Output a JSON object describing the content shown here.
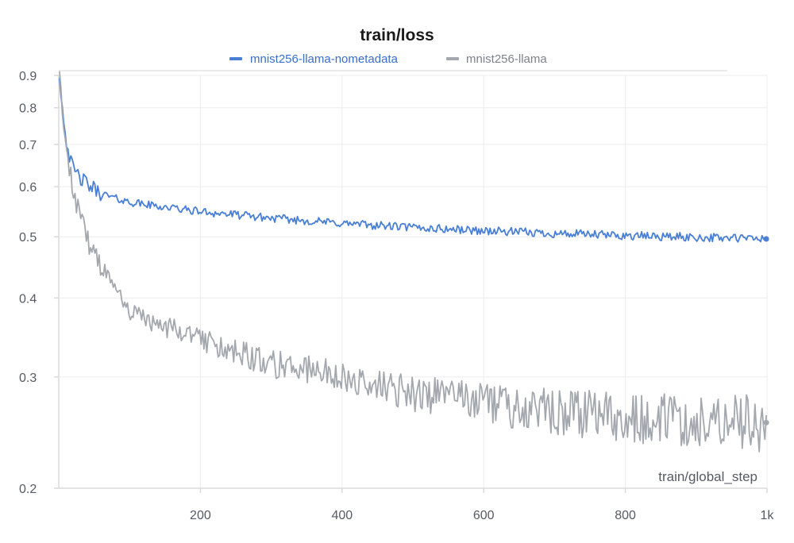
{
  "chart_data": {
    "type": "line",
    "title": "train/loss",
    "xlabel": "train/global_step",
    "ylabel": "",
    "xlim": [
      0,
      1000
    ],
    "ylim": [
      0.2,
      0.9
    ],
    "y_scale": "log",
    "grid": true,
    "legend_position": "top-center",
    "x_ticks": [
      200,
      400,
      600,
      800,
      1000
    ],
    "x_tick_labels": [
      "200",
      "400",
      "600",
      "800",
      "1k"
    ],
    "y_ticks": [
      0.2,
      0.3,
      0.4,
      0.5,
      0.6,
      0.7,
      0.8,
      0.9
    ],
    "y_tick_labels": [
      "0.2",
      "0.3",
      "0.4",
      "0.5",
      "0.6",
      "0.7",
      "0.8",
      "0.9"
    ],
    "series": [
      {
        "name": "mnist256-llama-nometadata",
        "color": "#4a7fd6",
        "noise": 0.008,
        "x": [
          1,
          5,
          10,
          15,
          20,
          30,
          40,
          60,
          80,
          100,
          150,
          200,
          300,
          400,
          500,
          600,
          700,
          800,
          900,
          1000
        ],
        "y": [
          0.9,
          0.8,
          0.72,
          0.67,
          0.64,
          0.62,
          0.605,
          0.585,
          0.575,
          0.567,
          0.557,
          0.548,
          0.535,
          0.525,
          0.517,
          0.511,
          0.506,
          0.502,
          0.499,
          0.496
        ]
      },
      {
        "name": "mnist256-llama",
        "color": "#a3a8ae",
        "noise": 0.012,
        "x": [
          1,
          5,
          10,
          15,
          20,
          30,
          40,
          60,
          80,
          100,
          150,
          200,
          250,
          300,
          400,
          500,
          600,
          700,
          800,
          900,
          1000
        ],
        "y": [
          0.92,
          0.78,
          0.7,
          0.64,
          0.6,
          0.54,
          0.5,
          0.45,
          0.41,
          0.38,
          0.36,
          0.345,
          0.33,
          0.315,
          0.3,
          0.283,
          0.273,
          0.265,
          0.26,
          0.257,
          0.254
        ]
      }
    ]
  }
}
